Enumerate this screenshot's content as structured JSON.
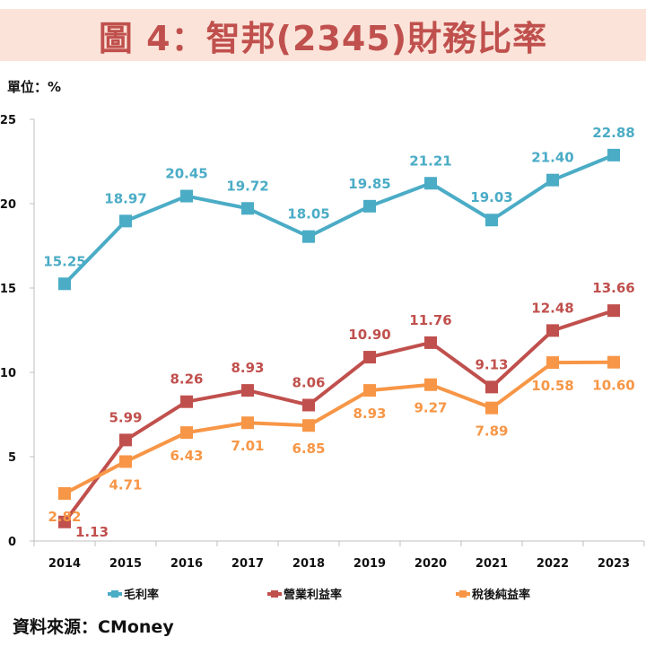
{
  "header": {
    "title": "圖 4：智邦(2345)財務比率",
    "unit_label": "單位：%"
  },
  "footer": {
    "source": "資料來源：CMoney"
  },
  "chart_data": {
    "type": "line",
    "title": "圖 4：智邦(2345)財務比率",
    "xlabel": "",
    "ylabel": "單位：%",
    "categories": [
      "2014",
      "2015",
      "2016",
      "2017",
      "2018",
      "2019",
      "2020",
      "2021",
      "2022",
      "2023"
    ],
    "ylim": [
      0,
      25
    ],
    "yticks": [
      0,
      5,
      10,
      15,
      20,
      25
    ],
    "grid": false,
    "legend_position": "bottom",
    "series": [
      {
        "name": "毛利率",
        "color": "#4bacc6",
        "marker": "square",
        "label_position": "above",
        "values": [
          15.25,
          18.97,
          20.45,
          19.72,
          18.05,
          19.85,
          21.21,
          19.03,
          21.4,
          22.88
        ],
        "labels": [
          "15.25",
          "18.97",
          "20.45",
          "19.72",
          "18.05",
          "19.85",
          "21.21",
          "19.03",
          "21.40",
          "22.88"
        ]
      },
      {
        "name": "營業利益率",
        "color": "#c0504d",
        "marker": "square",
        "label_position": "above",
        "values": [
          1.13,
          5.99,
          8.26,
          8.93,
          8.06,
          10.9,
          11.76,
          9.13,
          12.48,
          13.66
        ],
        "labels": [
          "1.13",
          "5.99",
          "8.26",
          "8.93",
          "8.06",
          "10.90",
          "11.76",
          "9.13",
          "12.48",
          "13.66"
        ]
      },
      {
        "name": "稅後純益率",
        "color": "#f79646",
        "marker": "square",
        "label_position": "below",
        "values": [
          2.82,
          4.71,
          6.43,
          7.01,
          6.85,
          8.93,
          9.27,
          7.89,
          10.58,
          10.6
        ],
        "labels": [
          "2.82",
          "4.71",
          "6.43",
          "7.01",
          "6.85",
          "8.93",
          "9.27",
          "7.89",
          "10.58",
          "10.60"
        ]
      }
    ]
  },
  "colors": {
    "title_text": "#c0504d",
    "title_background": "#fbe3d9",
    "axis": "#bfbfbf"
  }
}
